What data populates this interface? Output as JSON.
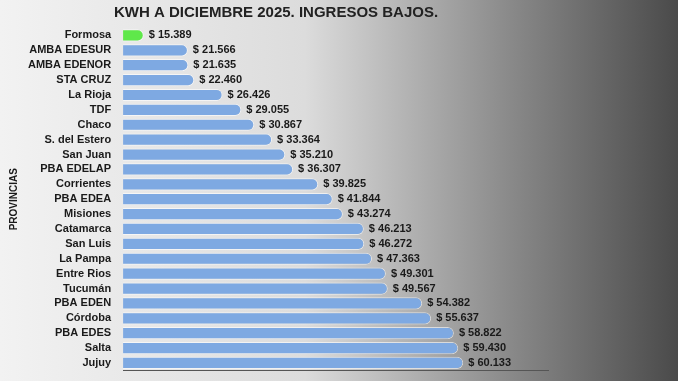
{
  "chart_data": {
    "type": "bar",
    "orientation": "horizontal",
    "title": "KWH A DICIEMBRE 2025. INGRESOS BAJOS.",
    "y_label": "PROVINCIAS",
    "categories": [
      "Formosa",
      "AMBA EDESUR",
      "AMBA EDENOR",
      "STA CRUZ",
      "La Rioja",
      "TDF",
      "Chaco",
      "S. del Estero",
      "San Juan",
      "PBA EDELAP",
      "Corrientes",
      "PBA EDEA",
      "Misiones",
      "Catamarca",
      "San Luis",
      "La Pampa",
      "Entre Rios",
      "Tucumán",
      "PBA EDEN",
      "Córdoba",
      "PBA EDES",
      "Salta",
      "Jujuy"
    ],
    "values": [
      15389,
      21566,
      21635,
      22460,
      26426,
      29055,
      30867,
      33364,
      35210,
      36307,
      39825,
      41844,
      43274,
      46213,
      46272,
      47363,
      49301,
      49567,
      54382,
      55637,
      58822,
      59430,
      60133
    ],
    "value_labels": [
      "$ 15.389",
      "$ 21.566",
      "$ 21.635",
      "$ 22.460",
      "$ 26.426",
      "$ 29.055",
      "$ 30.867",
      "$ 33.364",
      "$ 35.210",
      "$ 36.307",
      "$ 39.825",
      "$ 41.844",
      "$ 43.274",
      "$ 46.213",
      "$ 46.272",
      "$ 47.363",
      "$ 49.301",
      "$ 49.567",
      "$ 54.382",
      "$ 55.637",
      "$ 58.822",
      "$ 59.430",
      "$ 60.133"
    ],
    "colors": [
      "#5fe84a",
      "#7ea9e2",
      "#7ea9e2",
      "#7ea9e2",
      "#7ea9e2",
      "#7ea9e2",
      "#7ea9e2",
      "#7ea9e2",
      "#7ea9e2",
      "#7ea9e2",
      "#7ea9e2",
      "#7ea9e2",
      "#7ea9e2",
      "#7ea9e2",
      "#7ea9e2",
      "#7ea9e2",
      "#7ea9e2",
      "#7ea9e2",
      "#7ea9e2",
      "#7ea9e2",
      "#7ea9e2",
      "#7ea9e2",
      "#7ea9e2"
    ],
    "xlim": [
      12500,
      72000
    ],
    "grid": false,
    "data_labels": true,
    "tick_labels": "y"
  }
}
